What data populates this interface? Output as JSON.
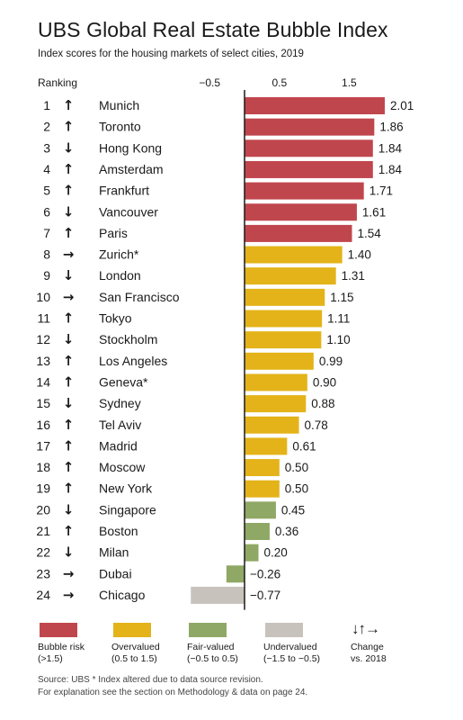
{
  "title": "UBS Global Real Estate Bubble Index",
  "subtitle": "Index scores for the housing markets of select cities, 2019",
  "ranking_header": "Ranking",
  "colors": {
    "bubble": "#c0464d",
    "overvalued": "#e3b319",
    "fair": "#8fa865",
    "under": "#c7c2bc"
  },
  "chart_data": {
    "type": "bar",
    "orientation": "horizontal",
    "ticks": [
      "−0.5",
      "0.5",
      "1.5"
    ],
    "tick_values": [
      -0.5,
      0.5,
      1.5
    ],
    "xlim": [
      -0.77,
      2.01
    ],
    "rows": [
      {
        "rank": "1",
        "change": "up",
        "city": "Munich",
        "value": 2.01,
        "label": "2.01",
        "category": "bubble"
      },
      {
        "rank": "2",
        "change": "up",
        "city": "Toronto",
        "value": 1.86,
        "label": "1.86",
        "category": "bubble"
      },
      {
        "rank": "3",
        "change": "down",
        "city": "Hong Kong",
        "value": 1.84,
        "label": "1.84",
        "category": "bubble"
      },
      {
        "rank": "4",
        "change": "up",
        "city": "Amsterdam",
        "value": 1.84,
        "label": "1.84",
        "category": "bubble"
      },
      {
        "rank": "5",
        "change": "up",
        "city": "Frankfurt",
        "value": 1.71,
        "label": "1.71",
        "category": "bubble"
      },
      {
        "rank": "6",
        "change": "down",
        "city": "Vancouver",
        "value": 1.61,
        "label": "1.61",
        "category": "bubble"
      },
      {
        "rank": "7",
        "change": "up",
        "city": "Paris",
        "value": 1.54,
        "label": "1.54",
        "category": "bubble"
      },
      {
        "rank": "8",
        "change": "right",
        "city": "Zurich*",
        "value": 1.4,
        "label": "1.40",
        "category": "overvalued"
      },
      {
        "rank": "9",
        "change": "down",
        "city": "London",
        "value": 1.31,
        "label": "1.31",
        "category": "overvalued"
      },
      {
        "rank": "10",
        "change": "right",
        "city": "San Francisco",
        "value": 1.15,
        "label": "1.15",
        "category": "overvalued"
      },
      {
        "rank": "11",
        "change": "up",
        "city": "Tokyo",
        "value": 1.11,
        "label": "1.11",
        "category": "overvalued"
      },
      {
        "rank": "12",
        "change": "down",
        "city": "Stockholm",
        "value": 1.1,
        "label": "1.10",
        "category": "overvalued"
      },
      {
        "rank": "13",
        "change": "up",
        "city": "Los Angeles",
        "value": 0.99,
        "label": "0.99",
        "category": "overvalued"
      },
      {
        "rank": "14",
        "change": "up",
        "city": "Geneva*",
        "value": 0.9,
        "label": "0.90",
        "category": "overvalued"
      },
      {
        "rank": "15",
        "change": "down",
        "city": "Sydney",
        "value": 0.88,
        "label": "0.88",
        "category": "overvalued"
      },
      {
        "rank": "16",
        "change": "up",
        "city": "Tel Aviv",
        "value": 0.78,
        "label": "0.78",
        "category": "overvalued"
      },
      {
        "rank": "17",
        "change": "up",
        "city": "Madrid",
        "value": 0.61,
        "label": "0.61",
        "category": "overvalued"
      },
      {
        "rank": "18",
        "change": "up",
        "city": "Moscow",
        "value": 0.5,
        "label": "0.50",
        "category": "overvalued"
      },
      {
        "rank": "19",
        "change": "up",
        "city": "New York",
        "value": 0.5,
        "label": "0.50",
        "category": "overvalued"
      },
      {
        "rank": "20",
        "change": "down",
        "city": "Singapore",
        "value": 0.45,
        "label": "0.45",
        "category": "fair"
      },
      {
        "rank": "21",
        "change": "up",
        "city": "Boston",
        "value": 0.36,
        "label": "0.36",
        "category": "fair"
      },
      {
        "rank": "22",
        "change": "down",
        "city": "Milan",
        "value": 0.2,
        "label": "0.20",
        "category": "fair"
      },
      {
        "rank": "23",
        "change": "right",
        "city": "Dubai",
        "value": -0.26,
        "label": "−0.26",
        "category": "fair"
      },
      {
        "rank": "24",
        "change": "right",
        "city": "Chicago",
        "value": -0.77,
        "label": "−0.77",
        "category": "under"
      }
    ]
  },
  "legend": {
    "bubble": {
      "name": "Bubble risk",
      "range": "(>1.5)"
    },
    "overvalued": {
      "name": "Overvalued",
      "range": "(0.5 to 1.5)"
    },
    "fair": {
      "name": "Fair-valued",
      "range": "(−0.5 to 0.5)"
    },
    "under": {
      "name": "Undervalued",
      "range": "(−1.5 to −0.5)"
    },
    "change": {
      "arrows": "↓↑→",
      "name": "Change",
      "range": "vs. 2018"
    }
  },
  "footnote": {
    "line1": "Source: UBS  * Index altered due to data source revision.",
    "line2": "For explanation see the section on Methodology & data on page 24."
  }
}
